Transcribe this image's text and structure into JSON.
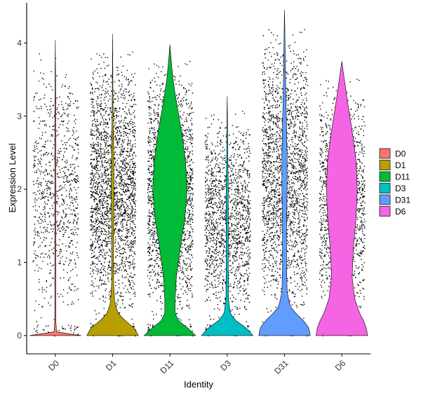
{
  "chart_data": {
    "type": "violin",
    "xlabel": "Identity",
    "ylabel": "Expression Level",
    "ylim": [
      -0.25,
      4.55
    ],
    "yticks": [
      0,
      1,
      2,
      3,
      4
    ],
    "y_tick_labels": [
      "0",
      "1",
      "2",
      "3",
      "4"
    ],
    "grid": false,
    "legend_position": "right",
    "categories": [
      "D0",
      "D1",
      "D11",
      "D3",
      "D31",
      "D6"
    ],
    "series": [
      {
        "name": "D0",
        "color": "#F8766D",
        "max": 4.04,
        "point_density": 0.35,
        "profile": [
          [
            0,
            1.0
          ],
          [
            0.02,
            0.4
          ],
          [
            0.05,
            0.05
          ],
          [
            0.2,
            0.02
          ],
          [
            1.0,
            0.02
          ],
          [
            2.0,
            0.02
          ],
          [
            3.0,
            0.02
          ],
          [
            4.04,
            0.0
          ]
        ]
      },
      {
        "name": "D1",
        "color": "#B79F00",
        "max": 4.12,
        "point_density": 1.0,
        "profile": [
          [
            0,
            1.0
          ],
          [
            0.1,
            0.85
          ],
          [
            0.2,
            0.5
          ],
          [
            0.3,
            0.22
          ],
          [
            0.45,
            0.08
          ],
          [
            0.7,
            0.04
          ],
          [
            1.0,
            0.035
          ],
          [
            1.5,
            0.04
          ],
          [
            2.0,
            0.05
          ],
          [
            2.5,
            0.04
          ],
          [
            3.0,
            0.02
          ],
          [
            3.5,
            0.01
          ],
          [
            4.12,
            0.0
          ]
        ]
      },
      {
        "name": "D11",
        "color": "#00BA38",
        "max": 3.98,
        "point_density": 1.0,
        "profile": [
          [
            0,
            1.0
          ],
          [
            0.1,
            0.7
          ],
          [
            0.2,
            0.35
          ],
          [
            0.3,
            0.2
          ],
          [
            0.5,
            0.2
          ],
          [
            0.8,
            0.25
          ],
          [
            1.2,
            0.4
          ],
          [
            1.6,
            0.58
          ],
          [
            2.0,
            0.67
          ],
          [
            2.4,
            0.6
          ],
          [
            2.8,
            0.45
          ],
          [
            3.2,
            0.25
          ],
          [
            3.5,
            0.12
          ],
          [
            3.8,
            0.04
          ],
          [
            3.98,
            0.0
          ]
        ]
      },
      {
        "name": "D3",
        "color": "#00BFC4",
        "max": 3.27,
        "point_density": 0.6,
        "profile": [
          [
            0,
            1.0
          ],
          [
            0.1,
            0.75
          ],
          [
            0.2,
            0.35
          ],
          [
            0.3,
            0.12
          ],
          [
            0.5,
            0.05
          ],
          [
            1.0,
            0.04
          ],
          [
            1.5,
            0.04
          ],
          [
            2.0,
            0.04
          ],
          [
            2.5,
            0.02
          ],
          [
            3.0,
            0.01
          ],
          [
            3.27,
            0.0
          ]
        ]
      },
      {
        "name": "D31",
        "color": "#619CFF",
        "max": 4.45,
        "point_density": 1.0,
        "profile": [
          [
            0,
            1.0
          ],
          [
            0.1,
            0.95
          ],
          [
            0.2,
            0.75
          ],
          [
            0.3,
            0.45
          ],
          [
            0.4,
            0.22
          ],
          [
            0.6,
            0.1
          ],
          [
            1.0,
            0.08
          ],
          [
            1.5,
            0.08
          ],
          [
            2.0,
            0.1
          ],
          [
            2.5,
            0.1
          ],
          [
            3.0,
            0.07
          ],
          [
            3.5,
            0.04
          ],
          [
            4.0,
            0.02
          ],
          [
            4.45,
            0.0
          ]
        ]
      },
      {
        "name": "D6",
        "color": "#F564E3",
        "max": 3.75,
        "point_density": 0.55,
        "profile": [
          [
            0,
            1.0
          ],
          [
            0.1,
            0.95
          ],
          [
            0.2,
            0.85
          ],
          [
            0.3,
            0.7
          ],
          [
            0.5,
            0.5
          ],
          [
            0.8,
            0.4
          ],
          [
            1.2,
            0.45
          ],
          [
            1.6,
            0.55
          ],
          [
            2.0,
            0.6
          ],
          [
            2.4,
            0.55
          ],
          [
            2.8,
            0.4
          ],
          [
            3.2,
            0.22
          ],
          [
            3.5,
            0.1
          ],
          [
            3.75,
            0.0
          ]
        ]
      }
    ]
  },
  "legend": {
    "items": [
      {
        "label": "D0",
        "color": "#F8766D"
      },
      {
        "label": "D1",
        "color": "#B79F00"
      },
      {
        "label": "D11",
        "color": "#00BA38"
      },
      {
        "label": "D3",
        "color": "#00BFC4"
      },
      {
        "label": "D31",
        "color": "#619CFF"
      },
      {
        "label": "D6",
        "color": "#F564E3"
      }
    ]
  }
}
